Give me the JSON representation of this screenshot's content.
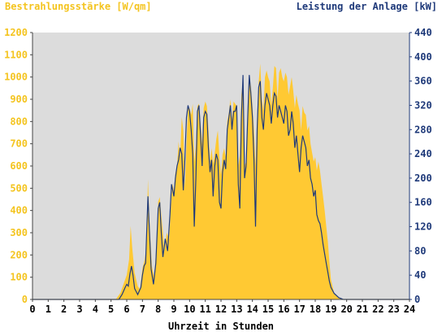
{
  "chart_data": {
    "type": "area",
    "ylabel_left": "Bestrahlungsstärke [W/qm]",
    "ylabel_right": "Leistung der Anlage [kW]",
    "xlabel": "Uhrzeit in Stunden",
    "xlim": [
      0,
      24
    ],
    "ylim_left": [
      0,
      1200
    ],
    "ylim_right": [
      0,
      440
    ],
    "xticks": [
      "0",
      "1",
      "2",
      "3",
      "4",
      "5",
      "6",
      "7",
      "8",
      "9",
      "10",
      "11",
      "12",
      "13",
      "14",
      "15",
      "16",
      "17",
      "18",
      "19",
      "20",
      "21",
      "22",
      "23",
      "24"
    ],
    "yticks_left": [
      "0",
      "100",
      "200",
      "300",
      "400",
      "500",
      "600",
      "700",
      "800",
      "900",
      "1000",
      "1100",
      "1200"
    ],
    "yticks_right": [
      "0",
      "40",
      "80",
      "120",
      "160",
      "200",
      "240",
      "280",
      "320",
      "360",
      "400",
      "440"
    ],
    "grid": false,
    "colors": {
      "irradiance": "#ffc933",
      "power": "#1f3a7a",
      "plot_bg": "#dcdcdc",
      "left_axis_text": "#f4c41f",
      "right_axis_text": "#1f3a7a"
    },
    "series": [
      {
        "name": "Bestrahlungsstärke [W/qm]",
        "axis": "left",
        "points": [
          [
            0,
            0
          ],
          [
            5.3,
            0
          ],
          [
            5.6,
            30
          ],
          [
            5.8,
            70
          ],
          [
            6.0,
            110
          ],
          [
            6.15,
            180
          ],
          [
            6.25,
            330
          ],
          [
            6.35,
            230
          ],
          [
            6.5,
            120
          ],
          [
            6.7,
            60
          ],
          [
            6.85,
            45
          ],
          [
            7.0,
            140
          ],
          [
            7.15,
            180
          ],
          [
            7.25,
            240
          ],
          [
            7.35,
            540
          ],
          [
            7.45,
            350
          ],
          [
            7.6,
            150
          ],
          [
            7.75,
            100
          ],
          [
            7.9,
            250
          ],
          [
            8.0,
            440
          ],
          [
            8.1,
            460
          ],
          [
            8.2,
            380
          ],
          [
            8.3,
            300
          ],
          [
            8.4,
            220
          ],
          [
            8.55,
            300
          ],
          [
            8.7,
            270
          ],
          [
            8.8,
            400
          ],
          [
            8.9,
            520
          ],
          [
            9.0,
            490
          ],
          [
            9.1,
            570
          ],
          [
            9.2,
            600
          ],
          [
            9.3,
            710
          ],
          [
            9.4,
            640
          ],
          [
            9.5,
            820
          ],
          [
            9.6,
            760
          ],
          [
            9.7,
            500
          ],
          [
            9.8,
            700
          ],
          [
            9.9,
            860
          ],
          [
            10.0,
            860
          ],
          [
            10.1,
            830
          ],
          [
            10.2,
            880
          ],
          [
            10.3,
            620
          ],
          [
            10.4,
            690
          ],
          [
            10.5,
            870
          ],
          [
            10.6,
            880
          ],
          [
            10.7,
            790
          ],
          [
            10.8,
            700
          ],
          [
            10.9,
            860
          ],
          [
            11.0,
            890
          ],
          [
            11.1,
            870
          ],
          [
            11.2,
            770
          ],
          [
            11.3,
            620
          ],
          [
            11.4,
            680
          ],
          [
            11.5,
            610
          ],
          [
            11.6,
            660
          ],
          [
            11.7,
            720
          ],
          [
            11.8,
            760
          ],
          [
            11.9,
            640
          ],
          [
            12.0,
            560
          ],
          [
            12.1,
            650
          ],
          [
            12.2,
            680
          ],
          [
            12.3,
            640
          ],
          [
            12.4,
            800
          ],
          [
            12.5,
            840
          ],
          [
            12.6,
            900
          ],
          [
            12.7,
            810
          ],
          [
            12.8,
            890
          ],
          [
            12.9,
            880
          ],
          [
            13.0,
            870
          ],
          [
            13.1,
            600
          ],
          [
            13.2,
            650
          ],
          [
            13.3,
            920
          ],
          [
            13.4,
            980
          ],
          [
            13.5,
            600
          ],
          [
            13.6,
            620
          ],
          [
            13.7,
            850
          ],
          [
            13.8,
            1000
          ],
          [
            13.9,
            960
          ],
          [
            14.0,
            870
          ],
          [
            14.1,
            760
          ],
          [
            14.2,
            600
          ],
          [
            14.3,
            820
          ],
          [
            14.4,
            980
          ],
          [
            14.5,
            1060
          ],
          [
            14.6,
            900
          ],
          [
            14.7,
            850
          ],
          [
            14.8,
            1000
          ],
          [
            14.9,
            1030
          ],
          [
            15.0,
            1000
          ],
          [
            15.1,
            980
          ],
          [
            15.2,
            870
          ],
          [
            15.3,
            950
          ],
          [
            15.4,
            1050
          ],
          [
            15.5,
            1040
          ],
          [
            15.6,
            900
          ],
          [
            15.7,
            1020
          ],
          [
            15.8,
            1040
          ],
          [
            15.9,
            1000
          ],
          [
            16.0,
            980
          ],
          [
            16.1,
            1020
          ],
          [
            16.2,
            1000
          ],
          [
            16.3,
            920
          ],
          [
            16.4,
            960
          ],
          [
            16.5,
            1000
          ],
          [
            16.6,
            940
          ],
          [
            16.7,
            860
          ],
          [
            16.8,
            920
          ],
          [
            16.9,
            880
          ],
          [
            17.0,
            850
          ],
          [
            17.1,
            760
          ],
          [
            17.2,
            870
          ],
          [
            17.3,
            840
          ],
          [
            17.4,
            830
          ],
          [
            17.5,
            760
          ],
          [
            17.6,
            780
          ],
          [
            17.7,
            700
          ],
          [
            17.8,
            660
          ],
          [
            17.9,
            620
          ],
          [
            18.0,
            640
          ],
          [
            18.1,
            580
          ],
          [
            18.2,
            620
          ],
          [
            18.3,
            580
          ],
          [
            18.4,
            520
          ],
          [
            18.5,
            460
          ],
          [
            18.6,
            400
          ],
          [
            18.7,
            330
          ],
          [
            18.8,
            260
          ],
          [
            18.9,
            170
          ],
          [
            19.0,
            90
          ],
          [
            19.2,
            30
          ],
          [
            19.5,
            5
          ],
          [
            20.0,
            0
          ],
          [
            24,
            0
          ]
        ]
      },
      {
        "name": "Leistung der Anlage [kW]",
        "axis": "right",
        "points": [
          [
            0,
            0
          ],
          [
            5.5,
            0
          ],
          [
            5.7,
            8
          ],
          [
            5.9,
            20
          ],
          [
            6.0,
            25
          ],
          [
            6.1,
            22
          ],
          [
            6.2,
            42
          ],
          [
            6.3,
            55
          ],
          [
            6.4,
            40
          ],
          [
            6.5,
            18
          ],
          [
            6.7,
            8
          ],
          [
            6.9,
            20
          ],
          [
            7.0,
            40
          ],
          [
            7.1,
            55
          ],
          [
            7.2,
            60
          ],
          [
            7.35,
            170
          ],
          [
            7.45,
            110
          ],
          [
            7.55,
            50
          ],
          [
            7.7,
            25
          ],
          [
            7.85,
            60
          ],
          [
            8.0,
            150
          ],
          [
            8.1,
            160
          ],
          [
            8.2,
            110
          ],
          [
            8.3,
            70
          ],
          [
            8.45,
            100
          ],
          [
            8.6,
            80
          ],
          [
            8.75,
            140
          ],
          [
            8.85,
            190
          ],
          [
            9.0,
            170
          ],
          [
            9.1,
            200
          ],
          [
            9.2,
            220
          ],
          [
            9.3,
            230
          ],
          [
            9.4,
            250
          ],
          [
            9.5,
            240
          ],
          [
            9.6,
            180
          ],
          [
            9.7,
            230
          ],
          [
            9.8,
            300
          ],
          [
            9.9,
            320
          ],
          [
            10.0,
            310
          ],
          [
            10.1,
            280
          ],
          [
            10.2,
            240
          ],
          [
            10.3,
            120
          ],
          [
            10.4,
            200
          ],
          [
            10.5,
            310
          ],
          [
            10.6,
            320
          ],
          [
            10.7,
            270
          ],
          [
            10.8,
            220
          ],
          [
            10.9,
            300
          ],
          [
            11.0,
            310
          ],
          [
            11.1,
            305
          ],
          [
            11.2,
            250
          ],
          [
            11.3,
            210
          ],
          [
            11.4,
            230
          ],
          [
            11.5,
            170
          ],
          [
            11.6,
            220
          ],
          [
            11.7,
            240
          ],
          [
            11.8,
            230
          ],
          [
            11.9,
            160
          ],
          [
            12.0,
            150
          ],
          [
            12.1,
            210
          ],
          [
            12.2,
            230
          ],
          [
            12.3,
            215
          ],
          [
            12.4,
            280
          ],
          [
            12.5,
            300
          ],
          [
            12.6,
            320
          ],
          [
            12.7,
            280
          ],
          [
            12.8,
            310
          ],
          [
            12.9,
            310
          ],
          [
            13.0,
            320
          ],
          [
            13.1,
            190
          ],
          [
            13.2,
            150
          ],
          [
            13.3,
            300
          ],
          [
            13.4,
            370
          ],
          [
            13.5,
            200
          ],
          [
            13.6,
            220
          ],
          [
            13.7,
            300
          ],
          [
            13.8,
            370
          ],
          [
            13.9,
            340
          ],
          [
            14.0,
            300
          ],
          [
            14.1,
            230
          ],
          [
            14.2,
            120
          ],
          [
            14.3,
            280
          ],
          [
            14.4,
            350
          ],
          [
            14.5,
            360
          ],
          [
            14.6,
            300
          ],
          [
            14.7,
            280
          ],
          [
            14.8,
            320
          ],
          [
            14.9,
            340
          ],
          [
            15.0,
            330
          ],
          [
            15.1,
            320
          ],
          [
            15.2,
            290
          ],
          [
            15.3,
            320
          ],
          [
            15.4,
            340
          ],
          [
            15.5,
            335
          ],
          [
            15.6,
            300
          ],
          [
            15.7,
            320
          ],
          [
            15.8,
            310
          ],
          [
            15.9,
            300
          ],
          [
            16.0,
            290
          ],
          [
            16.1,
            320
          ],
          [
            16.2,
            310
          ],
          [
            16.3,
            270
          ],
          [
            16.4,
            280
          ],
          [
            16.5,
            310
          ],
          [
            16.6,
            290
          ],
          [
            16.7,
            250
          ],
          [
            16.8,
            270
          ],
          [
            16.9,
            240
          ],
          [
            17.0,
            210
          ],
          [
            17.1,
            250
          ],
          [
            17.2,
            270
          ],
          [
            17.3,
            260
          ],
          [
            17.4,
            250
          ],
          [
            17.5,
            220
          ],
          [
            17.6,
            230
          ],
          [
            17.7,
            200
          ],
          [
            17.8,
            190
          ],
          [
            17.9,
            170
          ],
          [
            18.0,
            180
          ],
          [
            18.1,
            140
          ],
          [
            18.2,
            130
          ],
          [
            18.3,
            125
          ],
          [
            18.4,
            110
          ],
          [
            18.5,
            90
          ],
          [
            18.6,
            75
          ],
          [
            18.7,
            60
          ],
          [
            18.8,
            45
          ],
          [
            18.9,
            30
          ],
          [
            19.0,
            20
          ],
          [
            19.2,
            10
          ],
          [
            19.5,
            3
          ],
          [
            19.8,
            0
          ],
          [
            24,
            0
          ]
        ]
      }
    ]
  }
}
